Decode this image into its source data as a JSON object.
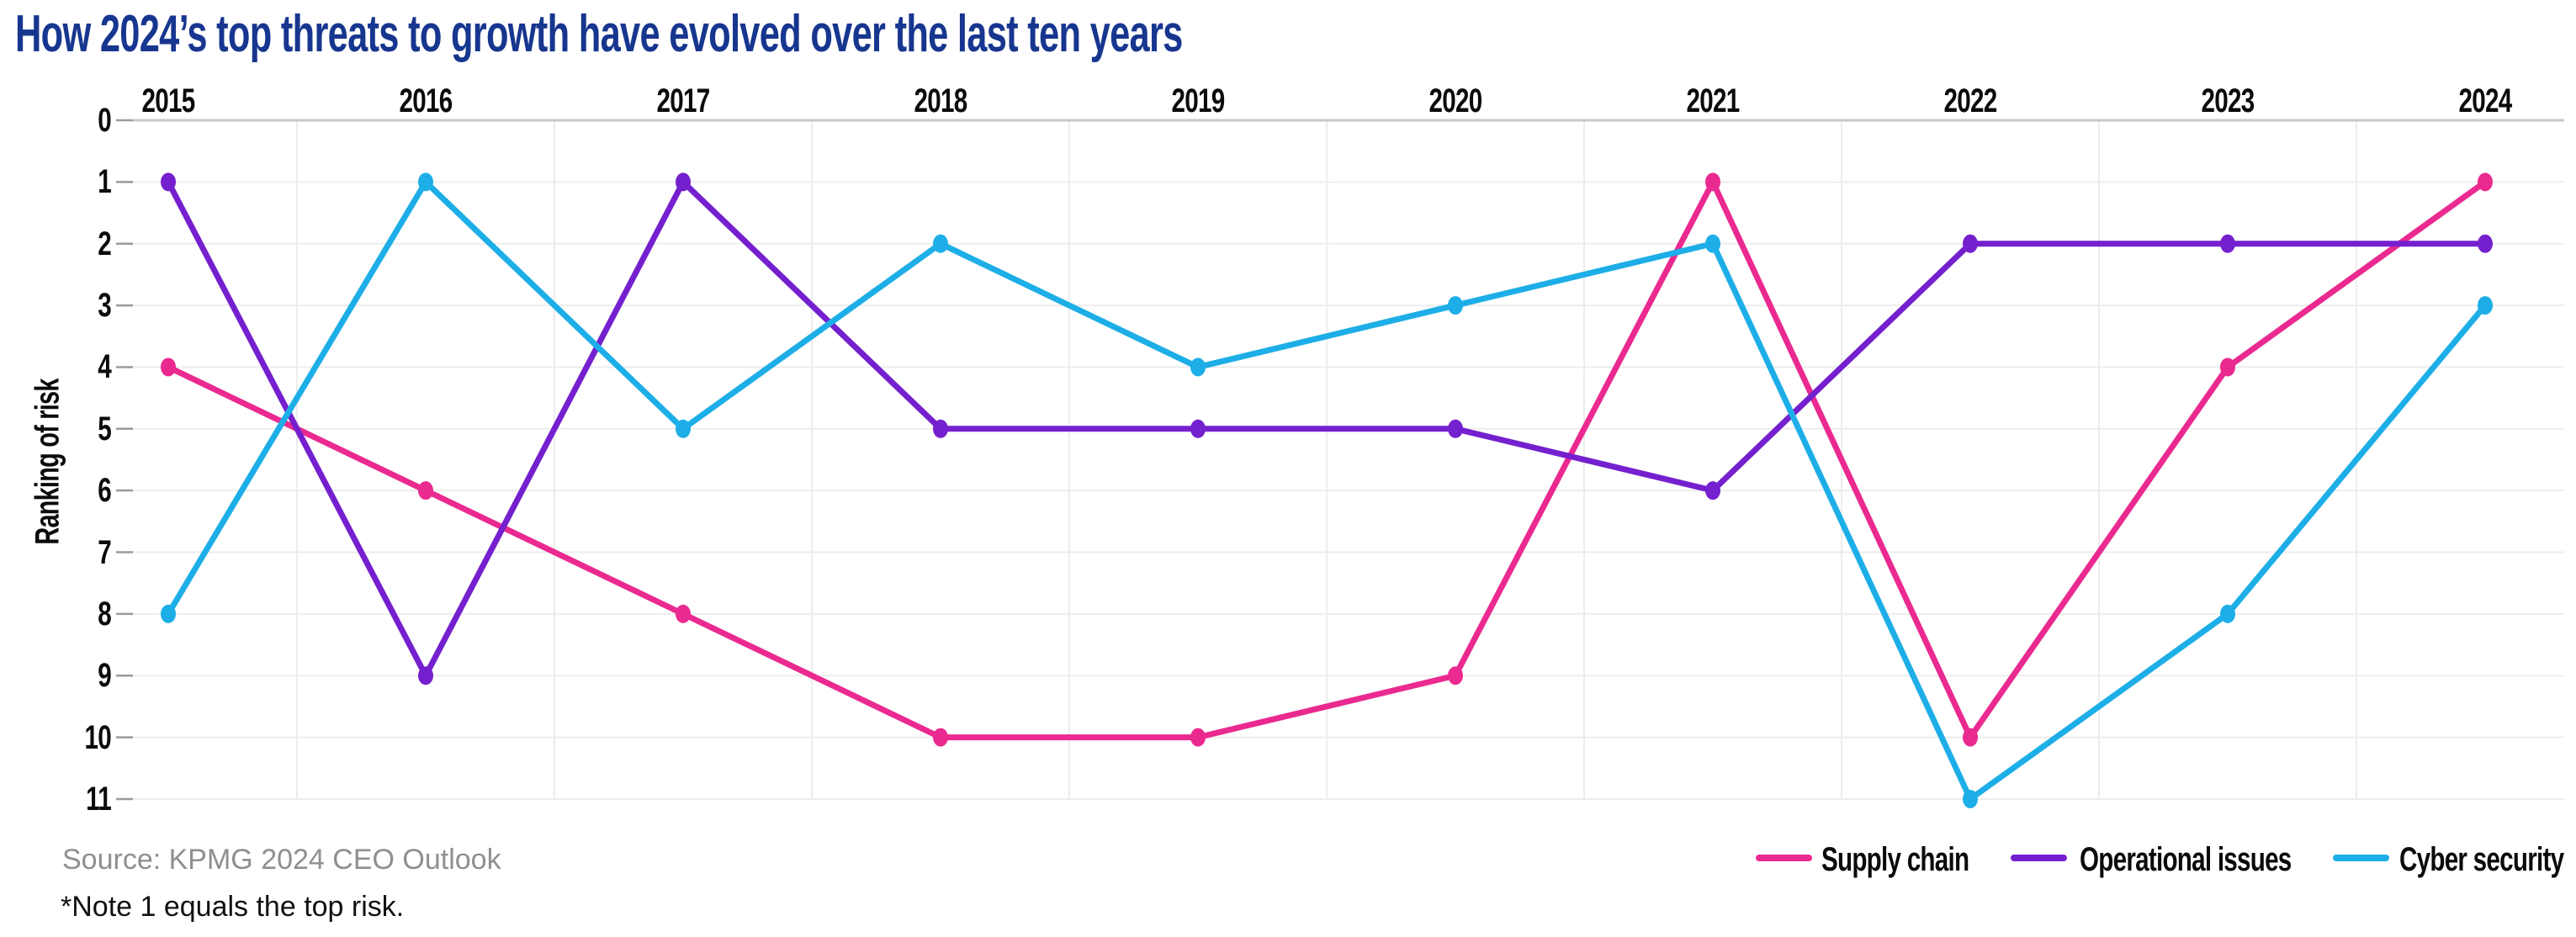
{
  "page": {
    "title": "How 2024’s top threats to growth have evolved over the last ten years",
    "source": "Source: KPMG 2024 CEO Outlook",
    "note": "*Note 1 equals the top risk."
  },
  "chart_data": {
    "type": "line",
    "title": "How 2024’s top threats to growth have evolved over the last ten years",
    "x": [
      "2015",
      "2016",
      "2017",
      "2018",
      "2019",
      "2020",
      "2021",
      "2022",
      "2023",
      "2024"
    ],
    "xlabel": "",
    "ylabel": "Ranking of risk",
    "y_ticks": [
      0,
      1,
      2,
      3,
      4,
      5,
      6,
      7,
      8,
      9,
      10,
      11
    ],
    "ylim": [
      0,
      11
    ],
    "y_axis_inverted": true,
    "grid": true,
    "x_axis_position": "top",
    "legend_position": "bottom-right",
    "series": [
      {
        "name": "Supply chain",
        "color": "#EA2A90",
        "values": [
          4,
          6,
          8,
          10,
          10,
          9,
          1,
          10,
          4,
          1
        ]
      },
      {
        "name": "Operational issues",
        "color": "#7520CE",
        "values": [
          1,
          9,
          1,
          5,
          5,
          5,
          6,
          2,
          2,
          2
        ]
      },
      {
        "name": "Cyber security",
        "color": "#1DAEE7",
        "values": [
          8,
          1,
          5,
          2,
          4,
          3,
          2,
          11,
          8,
          3
        ]
      }
    ]
  },
  "colors": {
    "title": "#17368F",
    "source_text": "#8F8F8F",
    "note_text": "#111111",
    "gridline": "#EDEDED",
    "axis_top_line": "#C8C8C8",
    "tick": "#9A9A9A"
  }
}
